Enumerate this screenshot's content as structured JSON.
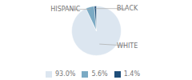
{
  "chart_data": {
    "type": "pie",
    "categories": [
      "WHITE",
      "HISPANIC",
      "BLACK"
    ],
    "values": [
      93.0,
      5.6,
      1.4
    ],
    "value_labels": [
      "93.0%",
      "5.6%",
      "1.4%"
    ],
    "colors": [
      "#dce6f0",
      "#7baac4",
      "#1f4e79"
    ],
    "legend": "bottom"
  }
}
